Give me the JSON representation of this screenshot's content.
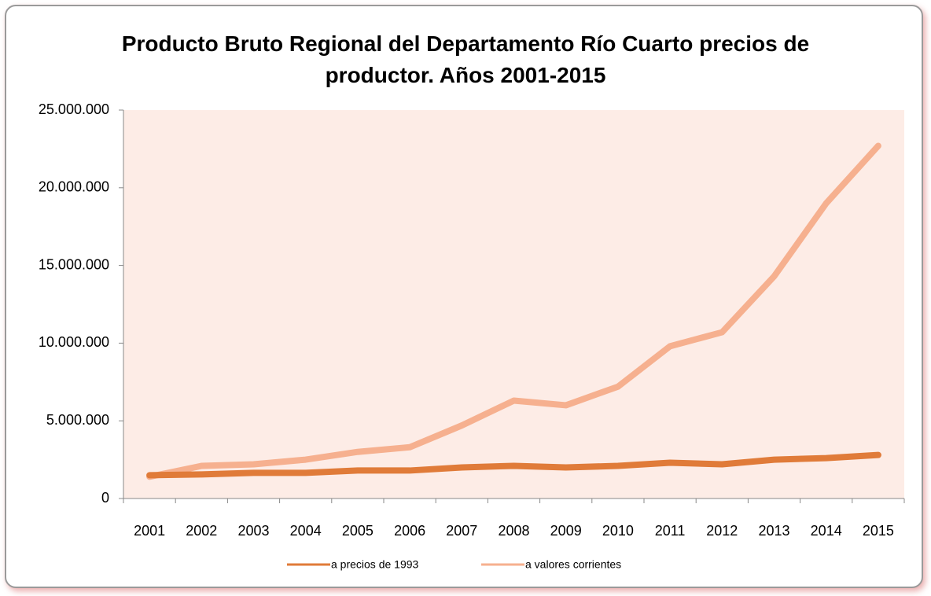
{
  "chart_data": {
    "type": "line",
    "title": "Producto Bruto Regional del Departamento Río Cuarto precios de productor. Años 2001-2015",
    "categories": [
      "2001",
      "2002",
      "2003",
      "2004",
      "2005",
      "2006",
      "2007",
      "2008",
      "2009",
      "2010",
      "2011",
      "2012",
      "2013",
      "2014",
      "2015"
    ],
    "series": [
      {
        "name": "a precios de 1993",
        "color": "#e07b39",
        "values": [
          1500000,
          1550000,
          1650000,
          1650000,
          1800000,
          1800000,
          2000000,
          2100000,
          2000000,
          2100000,
          2300000,
          2200000,
          2500000,
          2600000,
          2800000
        ]
      },
      {
        "name": "a valores corrientes",
        "color": "#f6b08f",
        "values": [
          1400000,
          2100000,
          2200000,
          2500000,
          3000000,
          3300000,
          4700000,
          6300000,
          6000000,
          7200000,
          9800000,
          10700000,
          14300000,
          19000000,
          22700000
        ]
      }
    ],
    "ylim": [
      0,
      25000000
    ],
    "yticks": [
      0,
      {
        "value": 5000000,
        "label": "5.000.000"
      },
      {
        "value": 10000000,
        "label": "10.000.000"
      },
      {
        "value": 15000000,
        "label": "15.000.000"
      },
      {
        "value": 20000000,
        "label": "20.000.000"
      },
      {
        "value": 25000000,
        "label": "25.000.000"
      }
    ],
    "grid": false,
    "legend": "bottom"
  }
}
